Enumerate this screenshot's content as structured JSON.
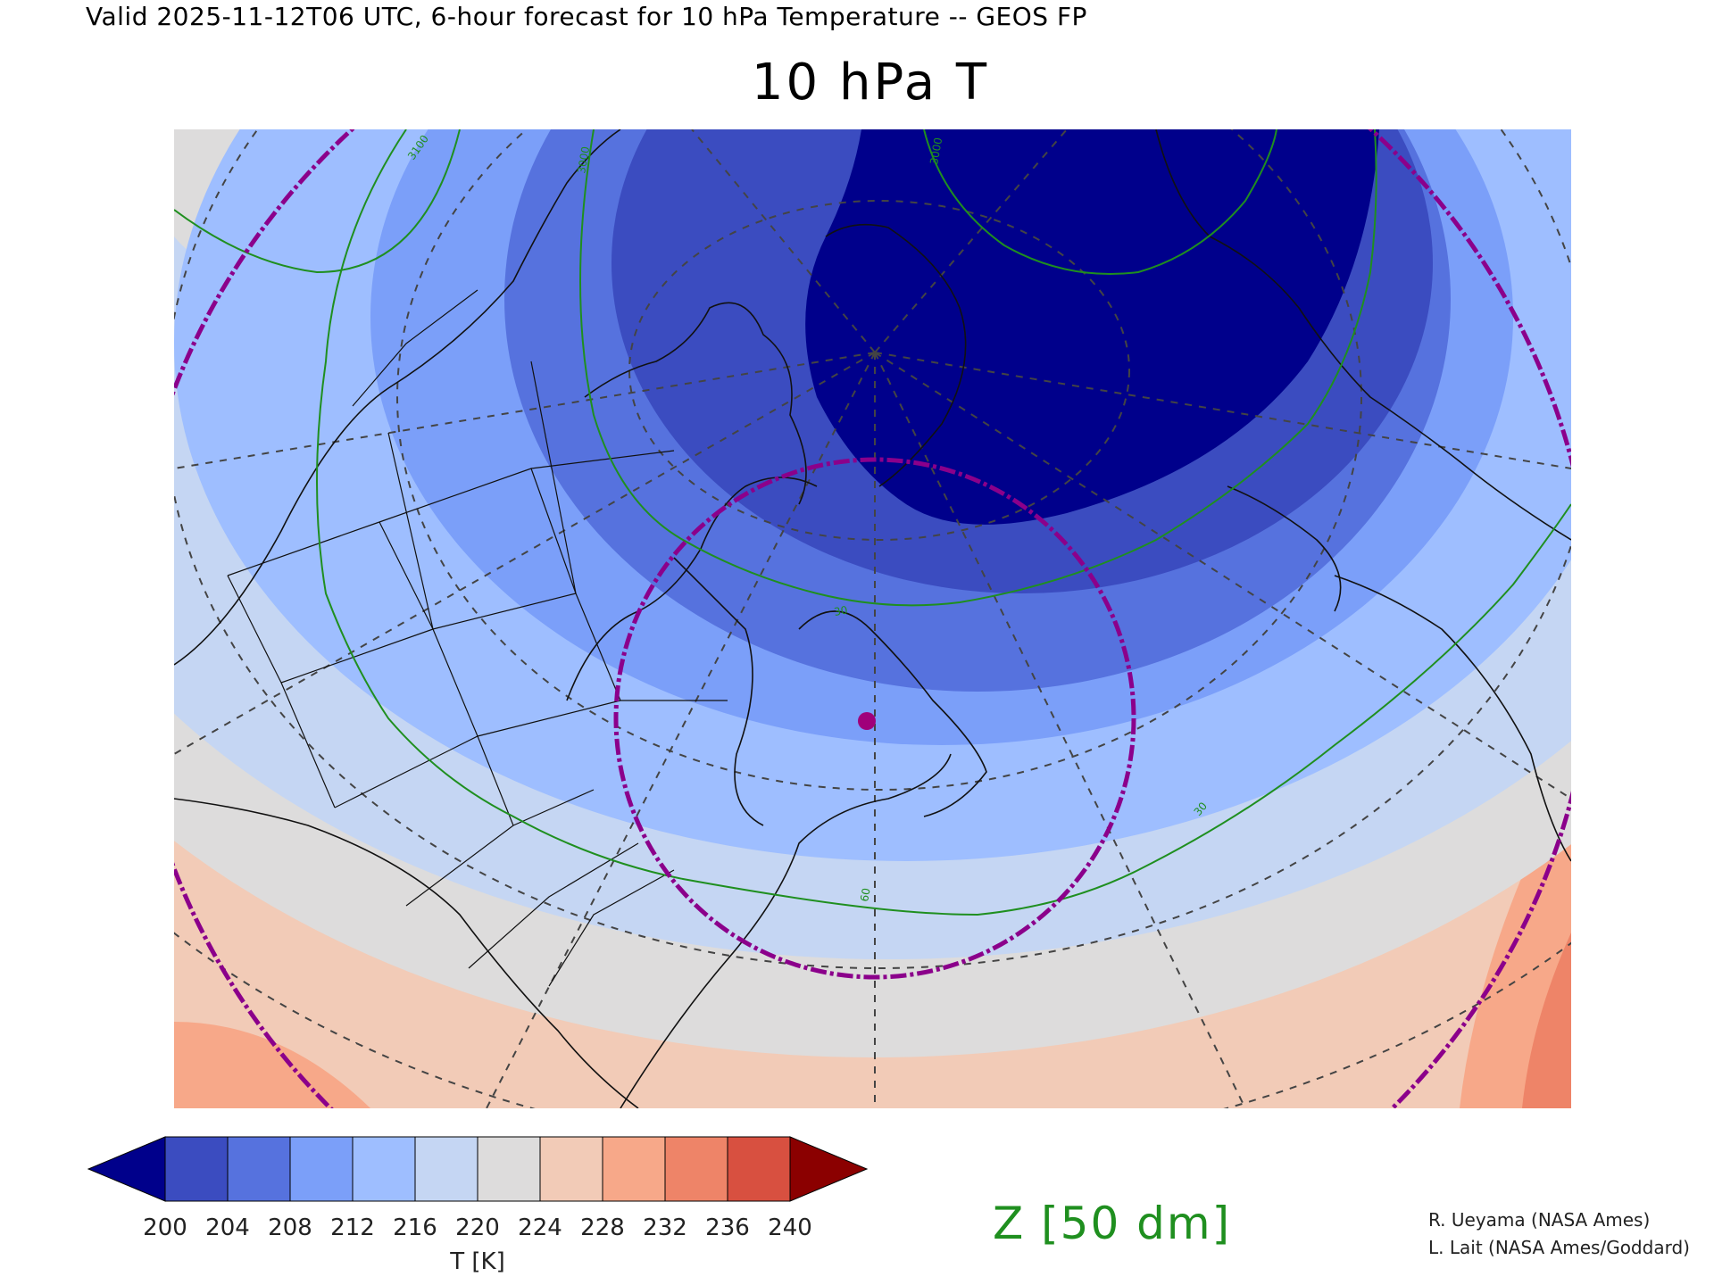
{
  "header": {
    "valid_line": "Valid 2025-11-12T06 UTC, 6-hour forecast for 10 hPa Temperature -- GEOS FP",
    "title": "10 hPa T"
  },
  "map": {
    "variable": "10 hPa Temperature",
    "projection": "polar stereographic (north)",
    "contour_labels": [
      "3100",
      "3000",
      "3000",
      "30",
      "30",
      "60"
    ],
    "colors": {
      "below_200": "#00008b",
      "200_204": "#3b4cc0",
      "204_208": "#5672de",
      "208_212": "#7b9ff9",
      "212_216": "#9ebeff",
      "216_220": "#c5d6f3",
      "220_224": "#dddcdc",
      "224_228": "#f2cbb7",
      "228_232": "#f7a889",
      "232_236": "#ee8468",
      "236_240": "#d85040",
      "above_240": "#8b0000",
      "geopotential_contour": "#1f8f1f",
      "vortex_edge": "#8b008b",
      "coastline": "#111111",
      "graticule": "#444444"
    },
    "marker_color": "#a0007a"
  },
  "colorbar": {
    "ticks": [
      "200",
      "204",
      "208",
      "212",
      "216",
      "220",
      "224",
      "228",
      "232",
      "236",
      "240"
    ],
    "colors": [
      "#00008b",
      "#3b4cc0",
      "#5672de",
      "#7b9ff9",
      "#9ebeff",
      "#c5d6f3",
      "#dddcdc",
      "#f2cbb7",
      "#f7a889",
      "#ee8468",
      "#d85040",
      "#8b0000"
    ],
    "label": "T [K]"
  },
  "legend": {
    "z_label": "Z [50 dm]"
  },
  "credits": [
    "R. Ueyama (NASA Ames)",
    "L. Lait (NASA Ames/Goddard)"
  ]
}
